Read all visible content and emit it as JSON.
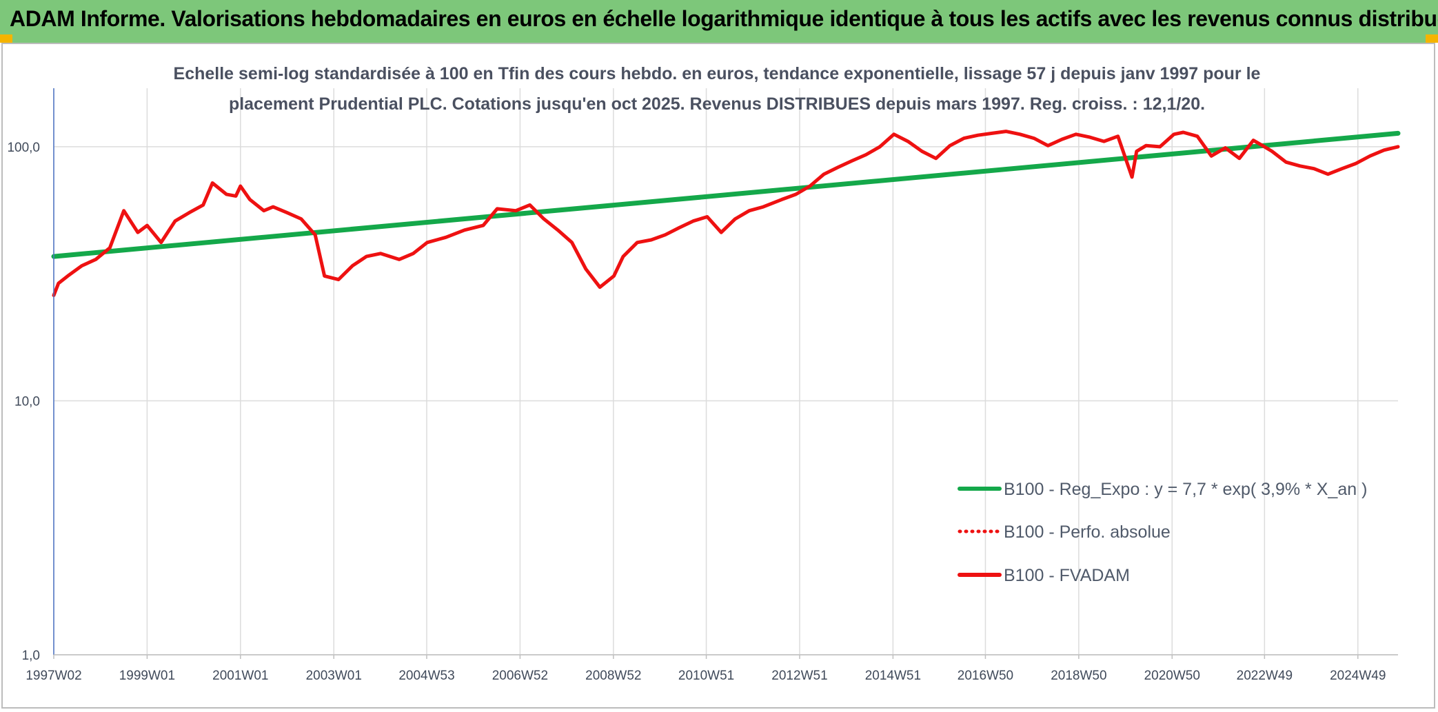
{
  "header": {
    "title": "ADAM Informe. Valorisations hebdomadaires en euros en échelle logarithmique identique à tous les actifs avec les revenus connus distribués"
  },
  "colors": {
    "banner": "#7dc77a",
    "corner_accent": "#f5b400",
    "regression_line": "#14a84a",
    "performance_line": "#ee1111",
    "grid": "#dcdcdc",
    "axis": "#4a72c4",
    "text": "#404a5a"
  },
  "chart_data": {
    "type": "line",
    "title_lines": [
      "Echelle semi-log standardisée à 100 en Tfin des cours hebdo. en euros, tendance exponentielle, lissage 57 j depuis janv 1997 pour le",
      "placement Prudential PLC. Cotations jusqu'en oct 2025. Revenus DISTRIBUES depuis mars 1997. Reg. croiss. : 12,1/20."
    ],
    "y_scale": "log",
    "ylim": [
      1,
      170
    ],
    "xlim": [
      1997.0,
      2025.8
    ],
    "y_ticks": [
      {
        "value": 1,
        "label": "1,0"
      },
      {
        "value": 10,
        "label": "10,0"
      },
      {
        "value": 100,
        "label": "100,0"
      }
    ],
    "x_ticks": [
      {
        "x": 1997.0,
        "label": "1997W02"
      },
      {
        "x": 1999.0,
        "label": "1999W01"
      },
      {
        "x": 2001.0,
        "label": "2001W01"
      },
      {
        "x": 2003.0,
        "label": "2003W01"
      },
      {
        "x": 2004.99,
        "label": "2004W53"
      },
      {
        "x": 2006.99,
        "label": "2006W52"
      },
      {
        "x": 2008.99,
        "label": "2008W52"
      },
      {
        "x": 2010.98,
        "label": "2010W51"
      },
      {
        "x": 2012.98,
        "label": "2012W51"
      },
      {
        "x": 2014.98,
        "label": "2014W51"
      },
      {
        "x": 2016.96,
        "label": "2016W50"
      },
      {
        "x": 2018.96,
        "label": "2018W50"
      },
      {
        "x": 2020.96,
        "label": "2020W50"
      },
      {
        "x": 2022.94,
        "label": "2022W49"
      },
      {
        "x": 2024.94,
        "label": "2024W49"
      }
    ],
    "grid": true,
    "legend_position": "bottom-right",
    "series": [
      {
        "name": "B100 - Reg_Expo : y = 7,7 * exp( 3,9% *  X_an )",
        "color": "#14a84a",
        "style": "solid",
        "x": [
          1997.0,
          2025.8
        ],
        "y": [
          37,
          113
        ]
      },
      {
        "name": "B100 - Perfo. absolue",
        "color": "#ee1111",
        "style": "dotted",
        "x": [],
        "y": []
      },
      {
        "name": "B100 - FVADAM",
        "color": "#ee1111",
        "style": "solid",
        "x": [
          1997.0,
          1997.1,
          1997.3,
          1997.6,
          1997.9,
          1998.2,
          1998.5,
          1998.8,
          1999.0,
          1999.3,
          1999.6,
          1999.9,
          2000.2,
          2000.4,
          2000.7,
          2000.9,
          2001.0,
          2001.2,
          2001.5,
          2001.7,
          2002.0,
          2002.3,
          2002.6,
          2002.8,
          2003.1,
          2003.4,
          2003.7,
          2004.0,
          2004.4,
          2004.7,
          2005.0,
          2005.4,
          2005.8,
          2006.2,
          2006.5,
          2006.9,
          2007.2,
          2007.5,
          2007.8,
          2008.1,
          2008.4,
          2008.7,
          2009.0,
          2009.2,
          2009.5,
          2009.8,
          2010.1,
          2010.4,
          2010.7,
          2011.0,
          2011.3,
          2011.6,
          2011.9,
          2012.2,
          2012.6,
          2012.9,
          2013.2,
          2013.5,
          2013.8,
          2014.1,
          2014.4,
          2014.7,
          2015.0,
          2015.3,
          2015.6,
          2015.9,
          2016.2,
          2016.5,
          2016.8,
          2017.1,
          2017.4,
          2017.7,
          2018.0,
          2018.3,
          2018.6,
          2018.9,
          2019.2,
          2019.5,
          2019.8,
          2020.1,
          2020.2,
          2020.4,
          2020.7,
          2021.0,
          2021.2,
          2021.5,
          2021.8,
          2022.1,
          2022.4,
          2022.7,
          2022.9,
          2023.1,
          2023.4,
          2023.7,
          2024.0,
          2024.3,
          2024.6,
          2024.9,
          2025.2,
          2025.5,
          2025.8
        ],
        "y": [
          26,
          29,
          31,
          34,
          36,
          40,
          56,
          46,
          49,
          42,
          51,
          55,
          59,
          72,
          65,
          64,
          70,
          62,
          56,
          58,
          55,
          52,
          45,
          31,
          30,
          34,
          37,
          38,
          36,
          38,
          42,
          44,
          47,
          49,
          57,
          56,
          59,
          52,
          47,
          42,
          33,
          28,
          31,
          37,
          42,
          43,
          45,
          48,
          51,
          53,
          46,
          52,
          56,
          58,
          62,
          65,
          70,
          78,
          83,
          88,
          93,
          100,
          112,
          105,
          96,
          90,
          101,
          108,
          111,
          113,
          115,
          112,
          108,
          101,
          107,
          112,
          109,
          105,
          110,
          76,
          96,
          101,
          100,
          112,
          114,
          110,
          92,
          99,
          90,
          106,
          101,
          96,
          87,
          84,
          82,
          78,
          82,
          86,
          92,
          97,
          100
        ]
      }
    ]
  }
}
